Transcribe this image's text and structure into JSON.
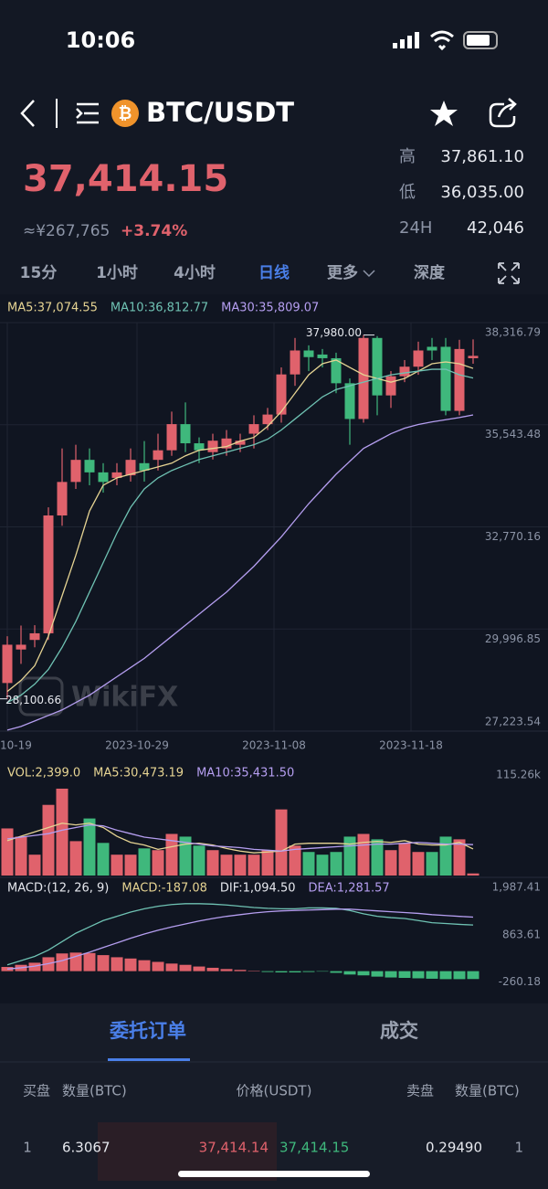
{
  "status": {
    "time": "10:06"
  },
  "header": {
    "pair": "BTC/USDT",
    "price": "37,414.15",
    "cny": "≈¥267,765",
    "change": "+3.74%",
    "stats": [
      {
        "label": "高",
        "value": "37,861.10"
      },
      {
        "label": "低",
        "value": "36,035.00"
      },
      {
        "label": "24H",
        "value": "42,046"
      }
    ]
  },
  "tabs": [
    "15分",
    "1小时",
    "4小时",
    "日线",
    "更多",
    "深度"
  ],
  "active_tab": 3,
  "watermark": "WikiFX",
  "chart_data": [
    {
      "type": "candlestick",
      "up_color": "#e0626c",
      "down_color": "#3fb87c",
      "categories": [
        "10-19",
        null,
        null,
        null,
        null,
        null,
        null,
        null,
        null,
        null,
        "2023-10-29",
        null,
        null,
        null,
        null,
        null,
        null,
        null,
        null,
        null,
        "2023-11-08",
        null,
        null,
        null,
        null,
        null,
        null,
        null,
        null,
        null,
        "2023-11-18",
        null,
        null,
        null,
        null
      ],
      "open": [
        28530,
        29440,
        29700,
        29880,
        33080,
        33990,
        34590,
        34250,
        34100,
        34170,
        34500,
        34590,
        34850,
        35560,
        35040,
        34800,
        34900,
        35000,
        35300,
        35560,
        35820,
        36910,
        37560,
        37450,
        37350,
        36670,
        35700,
        37900,
        36340,
        36860,
        37120,
        37660,
        37660,
        35920,
        37350
      ],
      "high": [
        29800,
        30090,
        30100,
        33300,
        34900,
        35000,
        34900,
        34500,
        34500,
        34900,
        35100,
        35300,
        35900,
        36150,
        35200,
        35300,
        35400,
        35300,
        35800,
        36000,
        37100,
        37900,
        37700,
        37600,
        37500,
        36800,
        37980,
        37950,
        37000,
        37300,
        37800,
        37900,
        37900,
        37850,
        37861.1
      ],
      "low": [
        28100.66,
        29050,
        29500,
        29700,
        32800,
        33800,
        33900,
        33700,
        33900,
        34000,
        34000,
        34300,
        34700,
        34800,
        34500,
        34600,
        34700,
        34800,
        34900,
        35400,
        35600,
        36600,
        37000,
        37100,
        36400,
        35000,
        35600,
        35800,
        36000,
        36700,
        36900,
        37300,
        35800,
        35800,
        37200
      ],
      "close": [
        29570,
        29570,
        29880,
        33080,
        33990,
        34590,
        34250,
        33990,
        34250,
        34590,
        34300,
        34850,
        35560,
        35040,
        34850,
        35110,
        35170,
        35110,
        35560,
        35820,
        36910,
        37560,
        37380,
        37350,
        36670,
        35700,
        37900,
        36340,
        36860,
        37120,
        37560,
        37560,
        35920,
        37600,
        37414.15
      ],
      "series": [
        {
          "name": "MA5:37,074.55",
          "color": "#e6d493",
          "values": [
            28300,
            28600,
            29000,
            29800,
            30900,
            32000,
            33200,
            33900,
            34100,
            34200,
            34300,
            34400,
            34500,
            34700,
            34850,
            34900,
            34950,
            35100,
            35200,
            35500,
            35900,
            36400,
            36900,
            37200,
            37300,
            37100,
            36900,
            36800,
            36700,
            36800,
            37000,
            37200,
            37250,
            37200,
            37074.55
          ]
        },
        {
          "name": "MA10:36,812.77",
          "color": "#6fc2b3",
          "values": [
            28000,
            28200,
            28500,
            28900,
            29500,
            30200,
            31000,
            31800,
            32600,
            33300,
            33800,
            34100,
            34300,
            34450,
            34600,
            34700,
            34800,
            34900,
            35000,
            35150,
            35400,
            35700,
            36000,
            36300,
            36500,
            36600,
            36700,
            36800,
            36900,
            36950,
            37000,
            37050,
            37050,
            36900,
            36812.77
          ]
        },
        {
          "name": "MA30:35,809.07",
          "color": "#b59ef0",
          "values": [
            27250,
            27350,
            27500,
            27650,
            27800,
            28000,
            28200,
            28450,
            28700,
            28950,
            29200,
            29500,
            29800,
            30100,
            30400,
            30700,
            31000,
            31350,
            31700,
            32100,
            32500,
            32950,
            33400,
            33800,
            34200,
            34550,
            34900,
            35100,
            35300,
            35450,
            35550,
            35620,
            35680,
            35740,
            35809.07
          ]
        }
      ],
      "ylim": [
        27223.54,
        38316.79
      ],
      "yticks": [
        {
          "value": 38316.79,
          "label": "38,316.79"
        },
        {
          "value": 35543.48,
          "label": "35,543.48"
        },
        {
          "value": 32770.16,
          "label": "32,770.16"
        },
        {
          "value": 29996.85,
          "label": "29,996.85"
        },
        {
          "value": 27223.54,
          "label": "27,223.54"
        }
      ],
      "grid": true,
      "annotations": [
        {
          "label": "37,980.00",
          "value": 37980
        },
        {
          "label": "28,100.66",
          "value": 28100.66
        }
      ]
    },
    {
      "type": "bar",
      "title": "VOL:2,399.0",
      "values": [
        54000,
        44600,
        23900,
        81000,
        99600,
        39400,
        65400,
        37400,
        23900,
        23900,
        31100,
        29100,
        47700,
        44600,
        34300,
        29100,
        23900,
        23900,
        23900,
        29100,
        75800,
        34300,
        27000,
        23900,
        27000,
        44600,
        47700,
        41500,
        29100,
        37400,
        27000,
        27000,
        44600,
        41500,
        2399
      ],
      "series": [
        {
          "name": "MA5:30,473.19",
          "color": "#e6d493",
          "values": [
            40000,
            45000,
            50000,
            55000,
            60000,
            58000,
            60000,
            55000,
            45000,
            38000,
            35000,
            30000,
            33000,
            36000,
            37000,
            35000,
            31000,
            28000,
            26000,
            27000,
            28000,
            36000,
            37000,
            37000,
            37000,
            36000,
            38000,
            39000,
            38000,
            40000,
            36000,
            35000,
            35000,
            38000,
            30473.19
          ]
        },
        {
          "name": "MA10:35,431.50",
          "color": "#b59ef0",
          "values": [
            42000,
            44000,
            46000,
            48000,
            52000,
            55000,
            58000,
            57000,
            52000,
            48000,
            44000,
            42000,
            40000,
            38000,
            36000,
            34000,
            33000,
            32000,
            30000,
            29000,
            28000,
            30000,
            31000,
            32000,
            33000,
            34000,
            35000,
            36000,
            36000,
            37000,
            38000,
            37000,
            36000,
            36000,
            35431.5
          ]
        }
      ],
      "ylim": [
        0,
        115260
      ],
      "yticks": [
        {
          "value": 115260,
          "label": "115.26k"
        }
      ]
    },
    {
      "type": "macd",
      "title": "MACD:(12, 26, 9)",
      "hist": {
        "name": "MACD:-187.08",
        "color": "#e6d493",
        "values": [
          100,
          150,
          200,
          330,
          420,
          440,
          430,
          380,
          330,
          300,
          260,
          220,
          180,
          150,
          110,
          80,
          50,
          30,
          10,
          -20,
          -30,
          -30,
          -20,
          -10,
          -40,
          -80,
          -100,
          -130,
          -150,
          -160,
          -170,
          -180,
          -190,
          -190,
          -187.08
        ]
      },
      "series": [
        {
          "name": "DIF:1,094.50",
          "color": "#6fc2b3",
          "values": [
            150,
            250,
            350,
            500,
            700,
            900,
            1050,
            1200,
            1300,
            1400,
            1480,
            1540,
            1580,
            1600,
            1600,
            1590,
            1570,
            1540,
            1510,
            1490,
            1480,
            1480,
            1500,
            1500,
            1490,
            1440,
            1360,
            1300,
            1270,
            1250,
            1200,
            1150,
            1130,
            1110,
            1094.5
          ]
        },
        {
          "name": "DEA:1,281.57",
          "color": "#b59ef0",
          "values": [
            50,
            80,
            120,
            180,
            250,
            350,
            450,
            560,
            670,
            780,
            880,
            970,
            1050,
            1120,
            1190,
            1250,
            1300,
            1340,
            1380,
            1410,
            1430,
            1440,
            1450,
            1460,
            1470,
            1470,
            1450,
            1430,
            1410,
            1390,
            1370,
            1340,
            1320,
            1300,
            1281.57
          ]
        }
      ],
      "ylim": [
        -550,
        2160
      ],
      "yticks": [
        {
          "value": 1987.41,
          "label": "1,987.41"
        },
        863.61,
        -260.18
      ]
    }
  ],
  "orders": {
    "tabs": [
      "委托订单",
      "成交"
    ],
    "columns": [
      "买盘",
      "数量(BTC)",
      "价格(USDT)",
      "卖盘",
      "数量(BTC)"
    ],
    "rows": [
      [
        "1",
        "6.3067",
        "37,414.14",
        "37,414.15",
        "0.29490",
        "1"
      ]
    ]
  }
}
